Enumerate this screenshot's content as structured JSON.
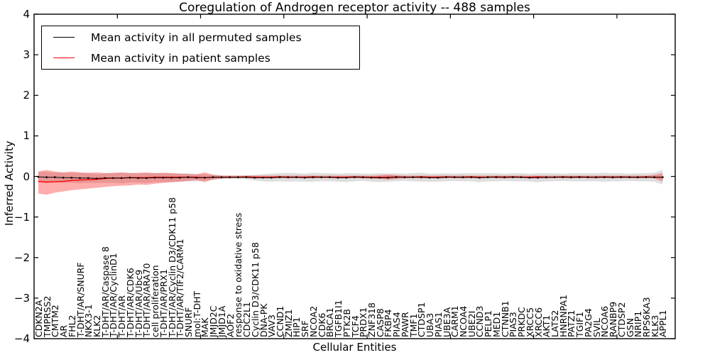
{
  "title": "Coregulation of Androgen receptor activity -- 488 samples",
  "axes": {
    "x_label": "Cellular Entities",
    "y_label": "Inferred Activity"
  },
  "legend": {
    "items": [
      {
        "label": "Mean activity in all permuted samples",
        "color": "#000000"
      },
      {
        "label": "Mean activity in patient samples",
        "color": "#ff0000"
      }
    ]
  },
  "chart_data": {
    "type": "line",
    "title": "Coregulation of Androgen receptor activity -- 488 samples",
    "xlabel": "Cellular Entities",
    "ylabel": "Inferred Activity",
    "xlim": [
      0,
      77
    ],
    "ylim": [
      -4,
      4
    ],
    "xticks": [
      10,
      20,
      30,
      40,
      50,
      60,
      70
    ],
    "ytick_values": [
      4,
      3,
      2,
      1,
      0,
      -1,
      -2,
      -3,
      -4
    ],
    "ytick_labels": [
      "4",
      "3",
      "2",
      "1",
      "0",
      "−1",
      "−2",
      "−3",
      "−4"
    ],
    "grid": false,
    "legend_position": "upper left",
    "categories": [
      "CDKN2A",
      "TMPRSS2",
      "CMTM2",
      "AR",
      "FHL2",
      "T-DHT/AR/SNURF",
      "NKX3-1",
      "KLK2",
      "T-DHT/AR/Caspase 8",
      "T-DHT/AR/CyclinD1",
      "T-DHT/AR",
      "T-DHT/AR/CDK6",
      "T-DHT/AR/Ubc9",
      "T-DHT/AR/ARA70",
      "cell proliferation",
      "T-DHT/AR/PRX1",
      "T-DHT/AR/Cyclin D3/CDK11 p58",
      "T-DHT/AR/TIF2/CARM1",
      "SNURF",
      "mol:T-DHT",
      "MAK",
      "JMJD2C",
      "JMJD1A",
      "AOF2",
      "response to oxidative stress",
      "CDC2L1",
      "Cyclin D3/CDK11 p58",
      "DNA-PK",
      "VAV3",
      "CCND1",
      "ZMIZ1",
      "HIP1",
      "SRF",
      "NCOA2",
      "CDK6",
      "BRCA1",
      "TGFB1I1",
      "PTK2B",
      "TCF4",
      "PRDX1",
      "ZNF318",
      "CASP8",
      "FKBP4",
      "PIAS4",
      "PAWR",
      "TMF1",
      "CTDSP1",
      "UBA3",
      "PIAS1",
      "UBE3A",
      "CARM1",
      "NCOA4",
      "UBE2I",
      "CCND3",
      "PELP1",
      "MED1",
      "CTNNB1",
      "PIAS3",
      "PRKDC",
      "XRCC5",
      "XRCC6",
      "AKT1",
      "LATS2",
      "HNRNPA1",
      "PATZ1",
      "TGIF1",
      "PA2G4",
      "SVIL",
      "NCOA6",
      "RANBP9",
      "CTDSP2",
      "GSN",
      "NRIP1",
      "RPS6KA3",
      "KLK3",
      "APPL1"
    ],
    "series": [
      {
        "name": "Mean activity in all permuted samples",
        "color": "#000000",
        "marker": "dot",
        "band_color": "#000000",
        "band_alpha": 0.13,
        "values": [
          -0.01,
          -0.02,
          -0.02,
          -0.03,
          -0.03,
          -0.04,
          -0.04,
          -0.05,
          -0.04,
          -0.04,
          -0.04,
          -0.03,
          -0.04,
          -0.04,
          -0.03,
          -0.03,
          -0.03,
          -0.03,
          -0.02,
          -0.03,
          -0.03,
          -0.02,
          -0.02,
          -0.02,
          -0.02,
          -0.02,
          -0.03,
          -0.03,
          -0.03,
          -0.02,
          -0.02,
          -0.02,
          -0.03,
          -0.02,
          -0.02,
          -0.02,
          -0.03,
          -0.03,
          -0.02,
          -0.02,
          -0.03,
          -0.03,
          -0.03,
          -0.02,
          -0.02,
          -0.02,
          -0.02,
          -0.03,
          -0.03,
          -0.02,
          -0.02,
          -0.02,
          -0.02,
          -0.03,
          -0.02,
          -0.02,
          -0.02,
          -0.02,
          -0.02,
          -0.03,
          -0.03,
          -0.02,
          -0.02,
          -0.02,
          -0.02,
          -0.02,
          -0.02,
          -0.02,
          -0.02,
          -0.02,
          -0.02,
          -0.02,
          -0.02,
          -0.02,
          -0.02,
          -0.02
        ],
        "band_half": [
          0.13,
          0.13,
          0.12,
          0.12,
          0.12,
          0.13,
          0.12,
          0.11,
          0.12,
          0.12,
          0.13,
          0.12,
          0.11,
          0.12,
          0.11,
          0.11,
          0.11,
          0.1,
          0.1,
          0.09,
          0.08,
          0.07,
          0.05,
          0.04,
          0.04,
          0.05,
          0.07,
          0.09,
          0.1,
          0.1,
          0.11,
          0.1,
          0.1,
          0.11,
          0.1,
          0.1,
          0.1,
          0.11,
          0.1,
          0.09,
          0.1,
          0.11,
          0.1,
          0.1,
          0.09,
          0.1,
          0.11,
          0.1,
          0.1,
          0.1,
          0.09,
          0.1,
          0.1,
          0.11,
          0.1,
          0.1,
          0.09,
          0.1,
          0.1,
          0.1,
          0.11,
          0.1,
          0.1,
          0.09,
          0.1,
          0.1,
          0.1,
          0.1,
          0.11,
          0.1,
          0.1,
          0.09,
          0.1,
          0.1,
          0.11,
          0.18
        ]
      },
      {
        "name": "Mean activity in patient samples",
        "color": "#ff0000",
        "marker": "none",
        "band_color": "#ff0000",
        "band_alpha": 0.32,
        "values": [
          -0.12,
          -0.14,
          -0.13,
          -0.12,
          -0.1,
          -0.09,
          -0.08,
          -0.07,
          -0.05,
          -0.04,
          -0.04,
          -0.03,
          -0.03,
          -0.03,
          -0.02,
          -0.02,
          -0.02,
          -0.02,
          -0.02,
          -0.02,
          -0.03,
          -0.02,
          -0.02,
          -0.02,
          -0.02,
          -0.01,
          -0.02,
          -0.02,
          -0.02,
          -0.01,
          -0.02,
          -0.02,
          -0.02,
          -0.01,
          -0.02,
          -0.02,
          -0.02,
          -0.02,
          -0.01,
          -0.02,
          -0.02,
          -0.02,
          -0.02,
          -0.01,
          -0.02,
          -0.02,
          -0.01,
          -0.02,
          -0.02,
          -0.01,
          -0.02,
          -0.02,
          -0.01,
          -0.02,
          -0.02,
          -0.01,
          -0.02,
          -0.01,
          -0.02,
          -0.02,
          -0.01,
          -0.02,
          -0.02,
          -0.01,
          -0.02,
          -0.01,
          -0.02,
          -0.02,
          -0.01,
          -0.02,
          -0.01,
          -0.02,
          -0.02,
          -0.01,
          -0.02,
          -0.02
        ],
        "band_lo": [
          -0.42,
          -0.45,
          -0.4,
          -0.37,
          -0.34,
          -0.32,
          -0.3,
          -0.28,
          -0.26,
          -0.24,
          -0.23,
          -0.22,
          -0.2,
          -0.21,
          -0.18,
          -0.16,
          -0.14,
          -0.13,
          -0.11,
          -0.09,
          -0.14,
          -0.07,
          -0.05,
          -0.04,
          -0.04,
          -0.04,
          -0.05,
          -0.04,
          -0.05,
          -0.04,
          -0.05,
          -0.04,
          -0.04,
          -0.05,
          -0.04,
          -0.04,
          -0.05,
          -0.04,
          -0.04,
          -0.05,
          -0.05,
          -0.06,
          -0.08,
          -0.06,
          -0.05,
          -0.04,
          -0.05,
          -0.04,
          -0.05,
          -0.04,
          -0.04,
          -0.05,
          -0.04,
          -0.05,
          -0.04,
          -0.04,
          -0.05,
          -0.04,
          -0.04,
          -0.05,
          -0.04,
          -0.05,
          -0.04,
          -0.04,
          -0.05,
          -0.04,
          -0.04,
          -0.05,
          -0.04,
          -0.05,
          -0.04,
          -0.04,
          -0.05,
          -0.04,
          -0.05,
          -0.12
        ],
        "band_hi": [
          0.12,
          0.16,
          0.12,
          0.1,
          0.12,
          0.1,
          0.09,
          0.1,
          0.08,
          0.09,
          0.1,
          0.08,
          0.09,
          0.1,
          0.08,
          0.09,
          0.08,
          0.07,
          0.06,
          0.05,
          0.1,
          0.04,
          0.02,
          0.02,
          0.02,
          0.02,
          0.02,
          0.02,
          0.02,
          0.02,
          0.02,
          0.02,
          0.02,
          0.02,
          0.02,
          0.02,
          0.02,
          0.02,
          0.02,
          0.02,
          0.02,
          0.03,
          0.05,
          0.03,
          0.02,
          0.02,
          0.02,
          0.02,
          0.02,
          0.02,
          0.02,
          0.02,
          0.02,
          0.02,
          0.02,
          0.02,
          0.02,
          0.02,
          0.02,
          0.02,
          0.02,
          0.02,
          0.02,
          0.02,
          0.02,
          0.02,
          0.02,
          0.02,
          0.02,
          0.02,
          0.02,
          0.02,
          0.02,
          0.02,
          0.04,
          0.08
        ]
      }
    ]
  }
}
